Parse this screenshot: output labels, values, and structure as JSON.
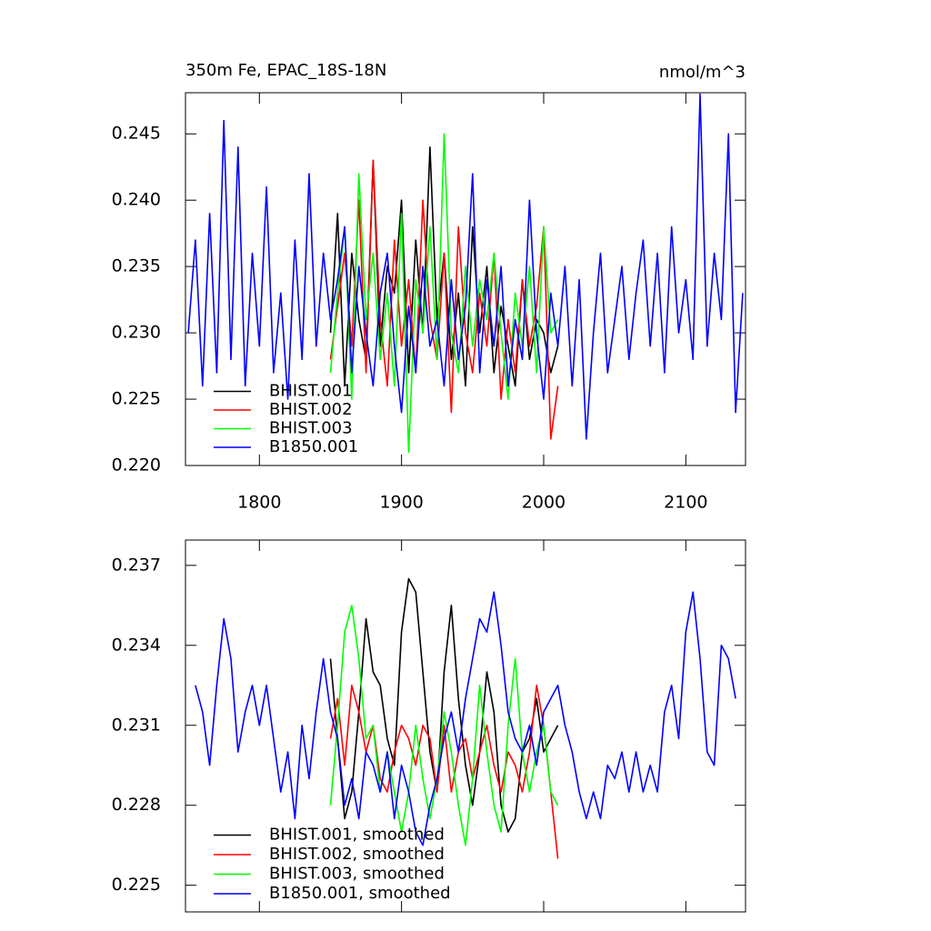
{
  "chart_data": [
    {
      "type": "line",
      "title": "350m Fe, EPAC_18S-18N",
      "units_label": "nmol/m^3",
      "x": [
        1750,
        1755,
        1760,
        1765,
        1770,
        1775,
        1780,
        1785,
        1790,
        1795,
        1800,
        1805,
        1810,
        1815,
        1820,
        1825,
        1830,
        1835,
        1840,
        1845,
        1850,
        1855,
        1860,
        1865,
        1870,
        1875,
        1880,
        1885,
        1890,
        1895,
        1900,
        1905,
        1910,
        1915,
        1920,
        1925,
        1930,
        1935,
        1940,
        1945,
        1950,
        1955,
        1960,
        1965,
        1970,
        1975,
        1980,
        1985,
        1990,
        1995,
        2000,
        2005,
        2010,
        2015,
        2020,
        2025,
        2030,
        2035,
        2040,
        2045,
        2050,
        2055,
        2060,
        2065,
        2070,
        2075,
        2080,
        2085,
        2090,
        2095,
        2100,
        2105,
        2110,
        2115,
        2120,
        2125,
        2130,
        2135,
        2140
      ],
      "xlim": [
        1748,
        2142
      ],
      "xticks": [
        1800,
        1900,
        2000,
        2100
      ],
      "xtick_labels": true,
      "ylim": [
        0.22,
        0.2481
      ],
      "yticks": [
        {
          "value": 0.22,
          "label": "0.220"
        },
        0.225,
        {
          "value": 0.23,
          "label": "0.230"
        },
        0.235,
        {
          "value": 0.24,
          "label": "0.240"
        },
        0.245
      ],
      "legend": "lower left",
      "series": [
        {
          "name": "BHIST.001",
          "color": "#000000",
          "values": [
            null,
            null,
            null,
            null,
            null,
            null,
            null,
            null,
            null,
            null,
            null,
            null,
            null,
            null,
            null,
            null,
            null,
            null,
            null,
            null,
            0.23,
            0.239,
            0.226,
            0.236,
            0.231,
            0.228,
            0.243,
            0.229,
            0.235,
            0.233,
            0.24,
            0.227,
            0.237,
            0.23,
            0.244,
            0.231,
            0.236,
            0.228,
            0.233,
            0.226,
            0.238,
            0.23,
            0.235,
            0.227,
            0.232,
            0.229,
            0.226,
            0.234,
            0.228,
            0.231,
            0.23,
            0.227,
            0.229,
            null,
            null,
            null,
            null,
            null,
            null,
            null,
            null,
            null,
            null,
            null,
            null,
            null,
            null,
            null,
            null,
            null,
            null,
            null,
            null,
            null,
            null,
            null,
            null,
            null,
            null
          ]
        },
        {
          "name": "BHIST.002",
          "color": "#ff0000",
          "values": [
            null,
            null,
            null,
            null,
            null,
            null,
            null,
            null,
            null,
            null,
            null,
            null,
            null,
            null,
            null,
            null,
            null,
            null,
            null,
            null,
            0.228,
            0.232,
            0.236,
            0.229,
            0.24,
            0.227,
            0.243,
            0.231,
            0.226,
            0.237,
            0.229,
            0.234,
            0.227,
            0.24,
            0.231,
            0.228,
            0.236,
            0.224,
            0.238,
            0.23,
            0.227,
            0.233,
            0.229,
            0.236,
            0.225,
            0.231,
            0.227,
            0.234,
            0.229,
            0.232,
            0.238,
            0.222,
            0.226,
            null,
            null,
            null,
            null,
            null,
            null,
            null,
            null,
            null,
            null,
            null,
            null,
            null,
            null,
            null,
            null,
            null,
            null,
            null,
            null,
            null,
            null,
            null,
            null,
            null,
            null
          ]
        },
        {
          "name": "BHIST.003",
          "color": "#00ff00",
          "values": [
            null,
            null,
            null,
            null,
            null,
            null,
            null,
            null,
            null,
            null,
            null,
            null,
            null,
            null,
            null,
            null,
            null,
            null,
            null,
            null,
            0.227,
            0.233,
            0.238,
            0.225,
            0.242,
            0.231,
            0.236,
            0.228,
            0.233,
            0.226,
            0.239,
            0.221,
            0.234,
            0.23,
            0.238,
            0.228,
            0.245,
            0.23,
            0.227,
            0.235,
            0.229,
            0.234,
            0.231,
            0.236,
            0.23,
            0.225,
            0.233,
            0.229,
            0.235,
            0.227,
            0.238,
            0.23,
            0.231,
            null,
            null,
            null,
            null,
            null,
            null,
            null,
            null,
            null,
            null,
            null,
            null,
            null,
            null,
            null,
            null,
            null,
            null,
            null,
            null,
            null,
            null,
            null,
            null,
            null,
            null
          ]
        },
        {
          "name": "B1850.001",
          "color": "#0000ff",
          "values": [
            0.23,
            0.237,
            0.226,
            0.239,
            0.227,
            0.246,
            0.228,
            0.244,
            0.226,
            0.236,
            0.229,
            0.241,
            0.227,
            0.233,
            0.225,
            0.237,
            0.228,
            0.242,
            0.229,
            0.236,
            0.231,
            0.234,
            0.238,
            0.227,
            0.235,
            0.23,
            0.226,
            0.233,
            0.236,
            0.229,
            0.224,
            0.232,
            0.227,
            0.235,
            0.229,
            0.231,
            0.226,
            0.234,
            0.228,
            0.232,
            0.242,
            0.227,
            0.234,
            0.229,
            0.235,
            0.226,
            0.231,
            0.228,
            0.24,
            0.23,
            0.225,
            0.233,
            0.229,
            0.235,
            0.226,
            0.234,
            0.222,
            0.23,
            0.236,
            0.227,
            0.231,
            0.235,
            0.228,
            0.233,
            0.237,
            0.229,
            0.236,
            0.227,
            0.238,
            0.23,
            0.234,
            0.228,
            0.248,
            0.229,
            0.236,
            0.231,
            0.245,
            0.224,
            0.233
          ]
        }
      ]
    },
    {
      "type": "line",
      "x": [
        1750,
        1755,
        1760,
        1765,
        1770,
        1775,
        1780,
        1785,
        1790,
        1795,
        1800,
        1805,
        1810,
        1815,
        1820,
        1825,
        1830,
        1835,
        1840,
        1845,
        1850,
        1855,
        1860,
        1865,
        1870,
        1875,
        1880,
        1885,
        1890,
        1895,
        1900,
        1905,
        1910,
        1915,
        1920,
        1925,
        1930,
        1935,
        1940,
        1945,
        1950,
        1955,
        1960,
        1965,
        1970,
        1975,
        1980,
        1985,
        1990,
        1995,
        2000,
        2005,
        2010,
        2015,
        2020,
        2025,
        2030,
        2035,
        2040,
        2045,
        2050,
        2055,
        2060,
        2065,
        2070,
        2075,
        2080,
        2085,
        2090,
        2095,
        2100,
        2105,
        2110,
        2115,
        2120,
        2125,
        2130,
        2135,
        2140
      ],
      "xlim": [
        1748,
        2142
      ],
      "xticks": [
        1800,
        1900,
        2000,
        2100
      ],
      "xtick_labels": false,
      "ylim": [
        0.224,
        0.23795
      ],
      "yticks": [
        0.225,
        0.228,
        0.231,
        0.234,
        0.237
      ],
      "legend": "lower left",
      "series": [
        {
          "name": "BHIST.001, smoothed",
          "color": "#000000",
          "values": [
            null,
            null,
            null,
            null,
            null,
            null,
            null,
            null,
            null,
            null,
            null,
            null,
            null,
            null,
            null,
            null,
            null,
            null,
            null,
            null,
            0.2335,
            0.2305,
            0.2275,
            0.2285,
            0.2315,
            0.235,
            0.233,
            0.2325,
            0.2305,
            0.2295,
            0.2345,
            0.2365,
            0.236,
            0.233,
            0.23,
            0.2285,
            0.233,
            0.2355,
            0.232,
            0.2295,
            0.228,
            0.23,
            0.233,
            0.2315,
            0.228,
            0.227,
            0.2275,
            0.23,
            0.2305,
            0.232,
            0.23,
            0.2305,
            0.231,
            null,
            null,
            null,
            null,
            null,
            null,
            null,
            null,
            null,
            null,
            null,
            null,
            null,
            null,
            null,
            null,
            null,
            null,
            null,
            null,
            null,
            null,
            null,
            null,
            null,
            null
          ]
        },
        {
          "name": "BHIST.002, smoothed",
          "color": "#ff0000",
          "values": [
            null,
            null,
            null,
            null,
            null,
            null,
            null,
            null,
            null,
            null,
            null,
            null,
            null,
            null,
            null,
            null,
            null,
            null,
            null,
            null,
            0.2305,
            0.232,
            0.2295,
            0.2325,
            0.2315,
            0.23,
            0.231,
            0.229,
            0.2285,
            0.23,
            0.231,
            0.2305,
            0.2295,
            0.231,
            0.2305,
            0.2285,
            0.231,
            0.2285,
            0.23,
            0.2305,
            0.229,
            0.23,
            0.231,
            0.2295,
            0.2285,
            0.23,
            0.2295,
            0.2285,
            0.23,
            0.2325,
            0.231,
            0.2285,
            0.226,
            null,
            null,
            null,
            null,
            null,
            null,
            null,
            null,
            null,
            null,
            null,
            null,
            null,
            null,
            null,
            null,
            null,
            null,
            null,
            null,
            null,
            null,
            null,
            null,
            null,
            null
          ]
        },
        {
          "name": "BHIST.003, smoothed",
          "color": "#00ff00",
          "values": [
            null,
            null,
            null,
            null,
            null,
            null,
            null,
            null,
            null,
            null,
            null,
            null,
            null,
            null,
            null,
            null,
            null,
            null,
            null,
            null,
            0.228,
            0.231,
            0.2345,
            0.2355,
            0.2335,
            0.2305,
            0.231,
            0.2285,
            0.23,
            0.2285,
            0.227,
            0.2285,
            0.231,
            0.229,
            0.2275,
            0.229,
            0.2315,
            0.23,
            0.228,
            0.2265,
            0.229,
            0.2325,
            0.23,
            0.228,
            0.227,
            0.231,
            0.2335,
            0.23,
            0.2285,
            0.23,
            0.231,
            0.2285,
            0.228,
            null,
            null,
            null,
            null,
            null,
            null,
            null,
            null,
            null,
            null,
            null,
            null,
            null,
            null,
            null,
            null,
            null,
            null,
            null,
            null,
            null,
            null,
            null,
            null,
            null,
            null
          ]
        },
        {
          "name": "B1850.001, smoothed",
          "color": "#0000ff",
          "values": [
            null,
            0.2325,
            0.2315,
            0.2295,
            0.2325,
            0.235,
            0.2335,
            0.23,
            0.2315,
            0.2325,
            0.231,
            0.2325,
            0.2305,
            0.2285,
            0.23,
            0.2275,
            0.231,
            0.229,
            0.2315,
            0.2335,
            0.2315,
            0.2305,
            0.228,
            0.229,
            0.2275,
            0.23,
            0.2295,
            0.2285,
            0.23,
            0.2275,
            0.2295,
            0.2285,
            0.227,
            0.2265,
            0.228,
            0.229,
            0.2305,
            0.2315,
            0.23,
            0.232,
            0.2335,
            0.235,
            0.2345,
            0.236,
            0.234,
            0.2315,
            0.2305,
            0.23,
            0.231,
            0.2295,
            0.2315,
            0.232,
            0.2325,
            0.231,
            0.23,
            0.2285,
            0.2275,
            0.2285,
            0.2275,
            0.2295,
            0.229,
            0.23,
            0.2285,
            0.23,
            0.2285,
            0.2295,
            0.2285,
            0.2315,
            0.2325,
            0.2305,
            0.2345,
            0.236,
            0.2335,
            0.23,
            0.2295,
            0.234,
            0.2335,
            0.232,
            null
          ]
        }
      ]
    }
  ]
}
